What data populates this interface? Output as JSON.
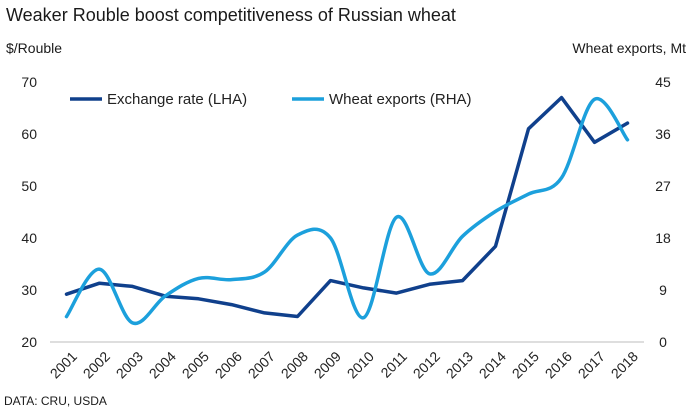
{
  "chart_data": {
    "type": "line",
    "title": "Weaker Rouble boost competitiveness of Russian wheat",
    "ylabel_left": "$/Rouble",
    "ylabel_right": "Wheat exports, Mt",
    "source": "DATA: CRU, USDA",
    "x": [
      "2001",
      "2002",
      "2003",
      "2004",
      "2005",
      "2006",
      "2007",
      "2008",
      "2009",
      "2010",
      "2011",
      "2012",
      "2013",
      "2014",
      "2015",
      "2016",
      "2017",
      "2018"
    ],
    "ylim_left": [
      20,
      70
    ],
    "yticks_left": [
      20,
      30,
      40,
      50,
      60,
      70
    ],
    "ylim_right": [
      0,
      45
    ],
    "yticks_right": [
      0,
      9,
      18,
      27,
      36,
      45
    ],
    "grid": false,
    "legend_position": "top-left",
    "series": [
      {
        "name": "Exchange rate (LHA)",
        "axis": "left",
        "color": "#10408c",
        "smooth": false,
        "values": [
          29.2,
          31.3,
          30.7,
          28.8,
          28.3,
          27.2,
          25.6,
          24.9,
          31.8,
          30.4,
          29.4,
          31.1,
          31.8,
          38.4,
          61.0,
          67.0,
          58.4,
          62.1
        ]
      },
      {
        "name": "Wheat exports (RHA)",
        "axis": "right",
        "color": "#1ca0dc",
        "smooth": true,
        "values": [
          4.4,
          12.6,
          3.3,
          8.0,
          11.0,
          10.8,
          12.1,
          18.5,
          18.0,
          4.2,
          21.6,
          11.8,
          18.3,
          22.6,
          25.6,
          28.4,
          42.0,
          35.0
        ]
      }
    ]
  }
}
